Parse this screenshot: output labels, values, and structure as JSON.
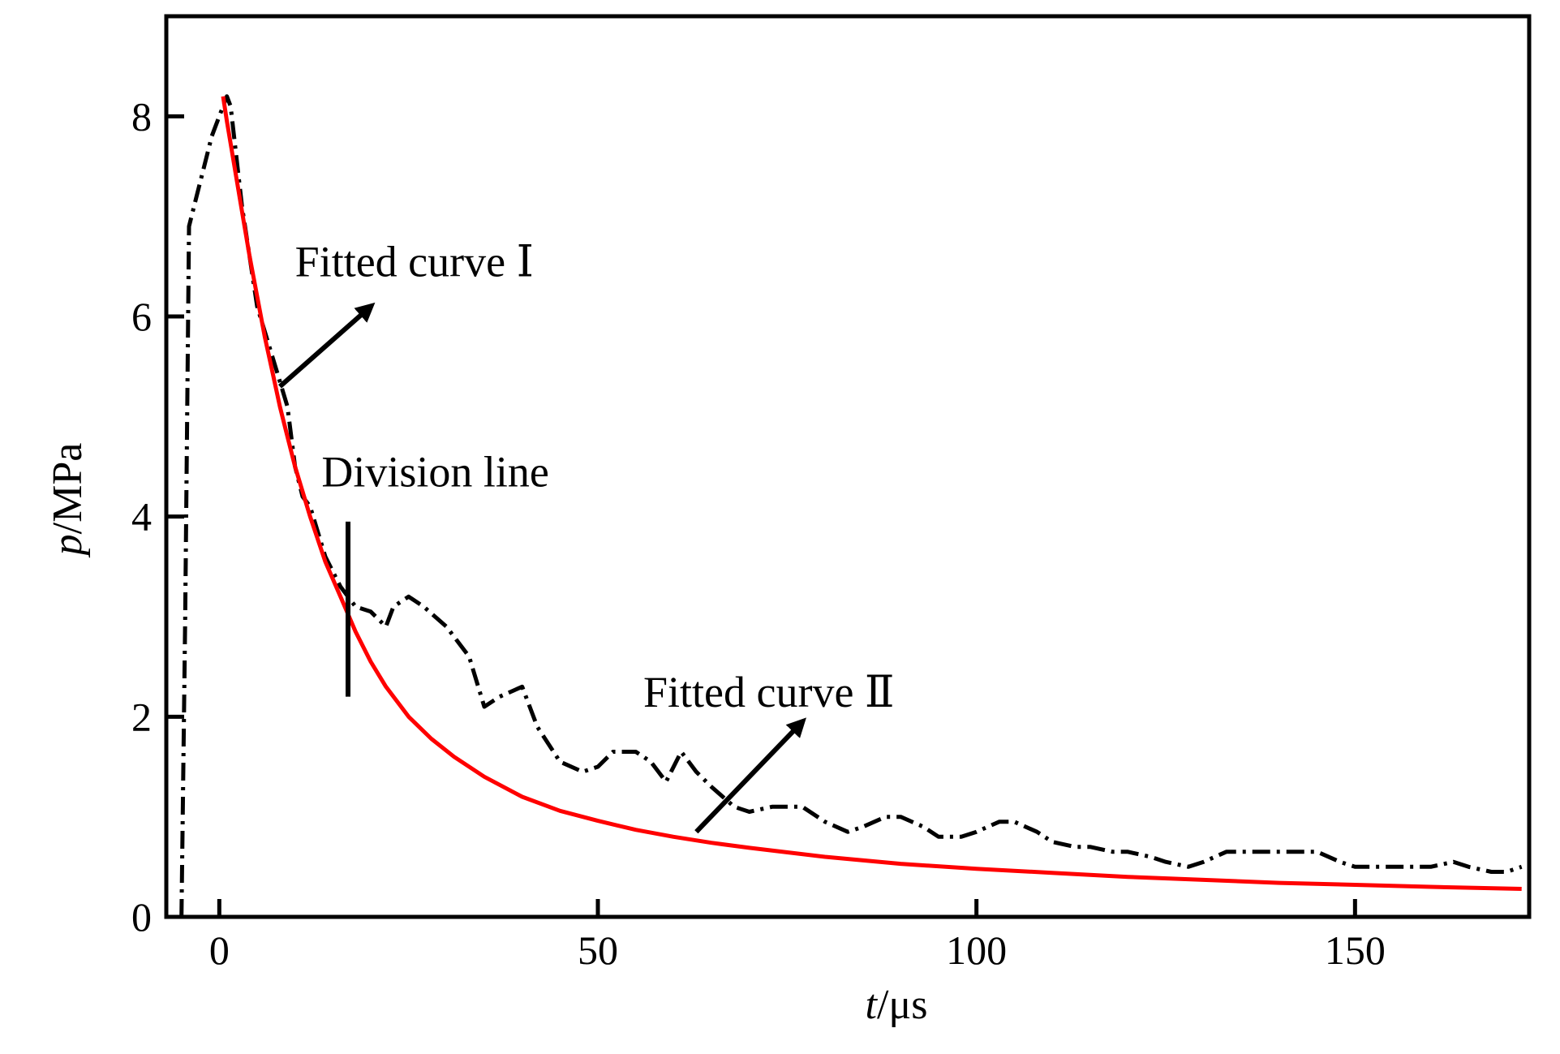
{
  "chart_data": {
    "type": "line",
    "xlabel": "t/μs",
    "ylabel": "p/MPa",
    "xlabel_var": "t",
    "xlabel_unit": "/μs",
    "ylabel_var": "p",
    "ylabel_unit": "/MPa",
    "xlim": [
      -7,
      173
    ],
    "ylim": [
      0,
      9
    ],
    "x_ticks": [
      0,
      50,
      100,
      150
    ],
    "y_ticks": [
      0,
      2,
      4,
      6,
      8
    ],
    "grid": false,
    "legend": "none",
    "colors": {
      "measured": "#000000",
      "fitted": "#ff0000",
      "axes": "#000000"
    },
    "series": [
      {
        "style": "dash-dot",
        "color": "#000000",
        "x": [
          -5,
          -4.5,
          -4,
          -3,
          -2,
          -1,
          0,
          1,
          1.5,
          3,
          5,
          7,
          9,
          10,
          11,
          12,
          14,
          16,
          18,
          20,
          22,
          23,
          25,
          27,
          30,
          33,
          35,
          37,
          40,
          42,
          45,
          48,
          50,
          52,
          55,
          57,
          59,
          61,
          63,
          65,
          68,
          70,
          73,
          75,
          77,
          80,
          83,
          85,
          88,
          90,
          93,
          95,
          98,
          100,
          103,
          105,
          108,
          110,
          113,
          115,
          118,
          120,
          123,
          125,
          128,
          130,
          133,
          135,
          138,
          140,
          143,
          145,
          148,
          150,
          153,
          155,
          158,
          160,
          163,
          165,
          168,
          170,
          172
        ],
        "y": [
          0,
          3.0,
          6.9,
          7.2,
          7.5,
          7.8,
          8.0,
          8.2,
          8.1,
          7.1,
          6.1,
          5.6,
          5.1,
          4.5,
          4.2,
          4.1,
          3.6,
          3.3,
          3.1,
          3.05,
          2.9,
          3.1,
          3.2,
          3.1,
          2.9,
          2.6,
          2.1,
          2.2,
          2.3,
          1.9,
          1.55,
          1.45,
          1.5,
          1.65,
          1.65,
          1.55,
          1.35,
          1.65,
          1.45,
          1.3,
          1.1,
          1.05,
          1.1,
          1.1,
          1.1,
          0.95,
          0.85,
          0.9,
          1.0,
          1.0,
          0.9,
          0.8,
          0.8,
          0.85,
          0.95,
          0.95,
          0.85,
          0.75,
          0.7,
          0.7,
          0.65,
          0.65,
          0.6,
          0.55,
          0.5,
          0.55,
          0.65,
          0.65,
          0.65,
          0.65,
          0.65,
          0.65,
          0.55,
          0.5,
          0.5,
          0.5,
          0.5,
          0.5,
          0.55,
          0.5,
          0.45,
          0.45,
          0.5
        ]
      },
      {
        "style": "solid",
        "color": "#ff0000",
        "x": [
          0.5,
          1,
          2,
          3,
          4,
          5,
          6,
          7,
          8,
          9,
          10,
          12,
          14,
          16,
          18,
          20,
          22,
          25,
          28,
          31,
          35,
          40,
          45,
          50,
          55,
          60,
          65,
          70,
          80,
          90,
          100,
          110,
          120,
          130,
          140,
          150,
          160,
          172
        ],
        "y": [
          8.2,
          7.95,
          7.5,
          7.05,
          6.6,
          6.2,
          5.8,
          5.45,
          5.1,
          4.8,
          4.5,
          4.0,
          3.55,
          3.2,
          2.85,
          2.55,
          2.3,
          2.0,
          1.78,
          1.6,
          1.4,
          1.2,
          1.06,
          0.96,
          0.87,
          0.8,
          0.74,
          0.69,
          0.6,
          0.53,
          0.48,
          0.44,
          0.4,
          0.37,
          0.34,
          0.32,
          0.3,
          0.28
        ]
      }
    ],
    "annotations": [
      {
        "text": "Fitted curve Ⅰ",
        "arrow_from": [
          8,
          5.3
        ],
        "arrow_to": [
          20,
          6.1
        ],
        "text_pos": [
          10,
          6.4
        ]
      },
      {
        "text": "Division line",
        "line_x": 17,
        "line_y": [
          2.2,
          3.95
        ],
        "text_pos": [
          13.5,
          4.3
        ]
      },
      {
        "text": "Fitted curve Ⅱ",
        "arrow_from": [
          63,
          0.85
        ],
        "arrow_to": [
          77,
          1.95
        ],
        "text_pos": [
          56,
          2.1
        ]
      }
    ]
  }
}
